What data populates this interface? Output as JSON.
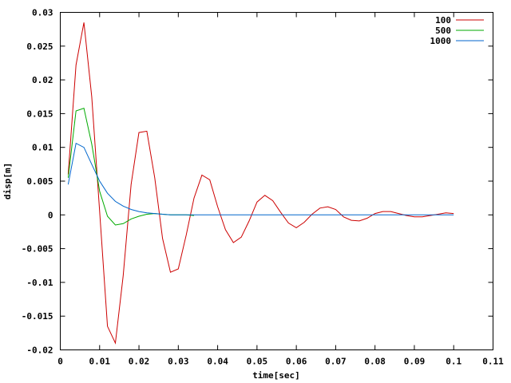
{
  "chart_data": {
    "type": "line",
    "title": "",
    "xlabel": "time[sec]",
    "ylabel": "disp[m]",
    "xlim": [
      0,
      0.11
    ],
    "ylim": [
      -0.02,
      0.03
    ],
    "x_ticks": [
      0,
      0.01,
      0.02,
      0.03,
      0.04,
      0.05,
      0.06,
      0.07,
      0.08,
      0.09,
      0.1,
      0.11
    ],
    "x_tick_labels": [
      "0",
      "0.01",
      "0.02",
      "0.03",
      "0.04",
      "0.05",
      "0.06",
      "0.07",
      "0.08",
      "0.09",
      "0.1",
      "0.11"
    ],
    "y_ticks": [
      -0.02,
      -0.015,
      -0.01,
      -0.005,
      0,
      0.005,
      0.01,
      0.015,
      0.02,
      0.025,
      0.03
    ],
    "y_tick_labels": [
      "-0.02",
      "-0.015",
      "-0.01",
      "-0.005",
      "0",
      "0.005",
      "0.01",
      "0.015",
      "0.02",
      "0.025",
      "0.03"
    ],
    "grid": false,
    "legend_position": "top-right",
    "series": [
      {
        "name": "100",
        "color": "#cc0000",
        "x": [
          0.002,
          0.004,
          0.006,
          0.008,
          0.01,
          0.012,
          0.014,
          0.016,
          0.018,
          0.02,
          0.022,
          0.024,
          0.026,
          0.028,
          0.03,
          0.032,
          0.034,
          0.036,
          0.038,
          0.04,
          0.042,
          0.044,
          0.046,
          0.048,
          0.05,
          0.052,
          0.054,
          0.056,
          0.058,
          0.06,
          0.062,
          0.064,
          0.066,
          0.068,
          0.07,
          0.072,
          0.074,
          0.076,
          0.078,
          0.08,
          0.082,
          0.084,
          0.086,
          0.088,
          0.09,
          0.092,
          0.094,
          0.096,
          0.098,
          0.1
        ],
        "y": [
          0.006,
          0.0222,
          0.0285,
          0.0175,
          0.0005,
          -0.0165,
          -0.019,
          -0.009,
          0.0045,
          0.0122,
          0.0124,
          0.0055,
          -0.0035,
          -0.0085,
          -0.008,
          -0.003,
          0.0025,
          0.0059,
          0.0052,
          0.0012,
          -0.0022,
          -0.0041,
          -0.0033,
          -0.0009,
          0.0019,
          0.0029,
          0.0021,
          0.0004,
          -0.0012,
          -0.0019,
          -0.0011,
          0.0001,
          0.001,
          0.0012,
          0.0008,
          -0.0003,
          -0.0008,
          -0.0009,
          -0.0005,
          0.0002,
          0.0005,
          0.0005,
          0.0002,
          -0.0001,
          -0.0003,
          -0.0003,
          -0.0001,
          0.0001,
          0.0003,
          0.0002
        ]
      },
      {
        "name": "500",
        "color": "#00aa00",
        "x": [
          0.002,
          0.004,
          0.006,
          0.008,
          0.01,
          0.012,
          0.014,
          0.016,
          0.018,
          0.02,
          0.022,
          0.024,
          0.026,
          0.028,
          0.03,
          0.032,
          0.034
        ],
        "y": [
          0.0055,
          0.0154,
          0.0158,
          0.0105,
          0.0035,
          -0.0002,
          -0.0015,
          -0.0013,
          -0.0006,
          -0.0002,
          0.0001,
          0.0002,
          0.0001,
          0.0,
          0.0,
          0.0,
          -0.0001
        ]
      },
      {
        "name": "1000",
        "color": "#0066cc",
        "x": [
          0.002,
          0.004,
          0.006,
          0.008,
          0.01,
          0.012,
          0.014,
          0.016,
          0.018,
          0.02,
          0.022,
          0.024,
          0.026,
          0.028,
          0.03,
          0.04,
          0.05,
          0.06,
          0.07,
          0.08,
          0.09,
          0.1
        ],
        "y": [
          0.0045,
          0.0106,
          0.01,
          0.0075,
          0.005,
          0.0032,
          0.002,
          0.0013,
          0.0008,
          0.0005,
          0.0003,
          0.0002,
          0.0001,
          0.0,
          0.0,
          0.0,
          0.0,
          0.0,
          0.0,
          0.0,
          0.0,
          0.0
        ]
      }
    ]
  }
}
